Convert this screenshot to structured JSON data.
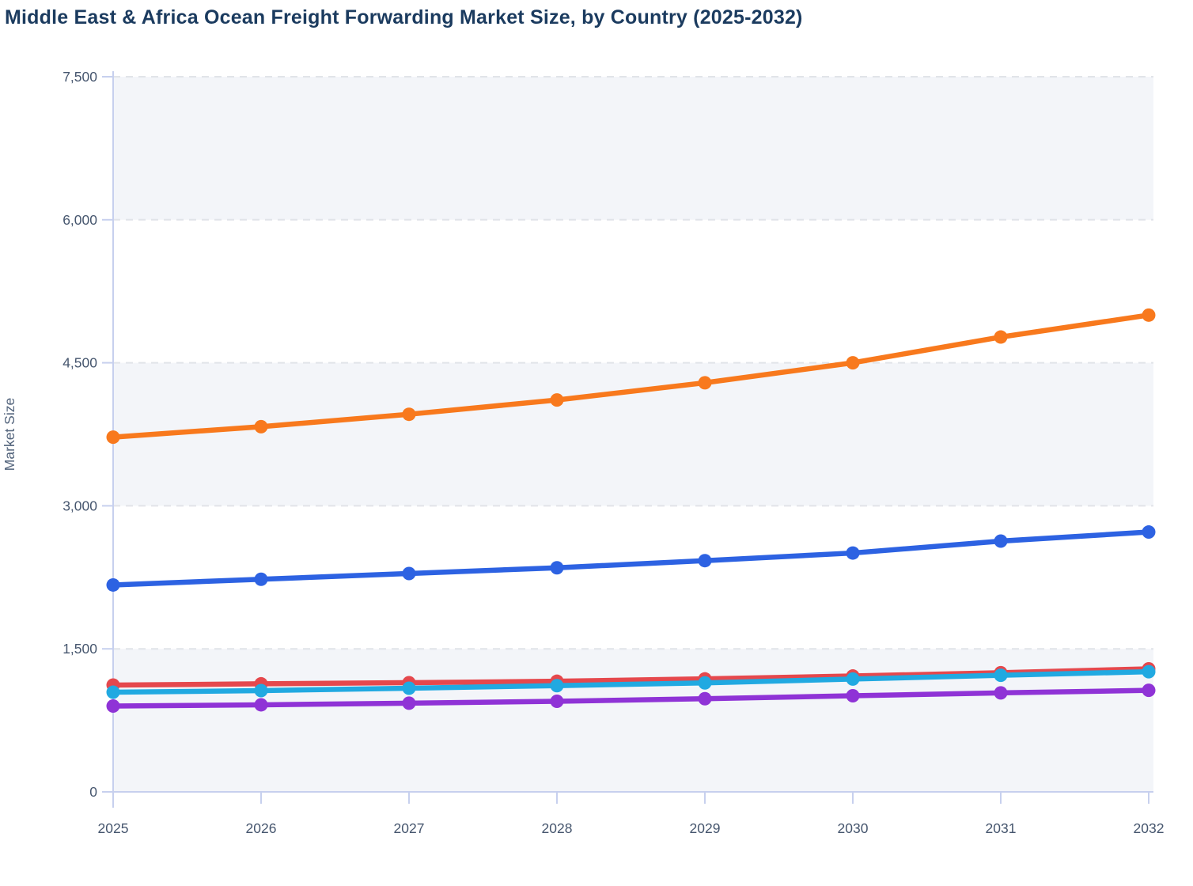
{
  "page": {
    "title": "Middle East & Africa Ocean Freight Forwarding Market Size, by Country (2025-2032)"
  },
  "chart_data": {
    "type": "line",
    "title": "Middle East & Africa Ocean Freight Forwarding Market Size, by Country (2025-2032)",
    "xlabel": "",
    "ylabel": "Market Size",
    "x": [
      2025,
      2026,
      2027,
      2028,
      2029,
      2030,
      2031,
      2032
    ],
    "xtick_labels": [
      "2025",
      "2026",
      "2027",
      "2028",
      "2029",
      "2030",
      "2031",
      "2032"
    ],
    "ylim": [
      0,
      7500
    ],
    "ytick_values": [
      0,
      1500,
      3000,
      4500,
      6000,
      7500
    ],
    "ytick_labels": [
      "0",
      "1,500",
      "3,000",
      "4,500",
      "6,000",
      "7,500"
    ],
    "grid": "horizontal dashed gridlines with alternating shaded bands",
    "legend_visible": false,
    "series": [
      {
        "id": "series-orange",
        "color": "#F8791D",
        "values": [
          3720,
          3830,
          3960,
          4110,
          4290,
          4500,
          4770,
          5000
        ]
      },
      {
        "id": "series-blue",
        "color": "#2D62E2",
        "values": [
          2170,
          2230,
          2290,
          2350,
          2425,
          2505,
          2630,
          2725
        ]
      },
      {
        "id": "series-red",
        "color": "#E5484D",
        "values": [
          1120,
          1133,
          1145,
          1160,
          1185,
          1215,
          1250,
          1290
        ]
      },
      {
        "id": "series-cyan",
        "color": "#21A9E1",
        "values": [
          1045,
          1062,
          1087,
          1114,
          1143,
          1183,
          1223,
          1260
        ]
      },
      {
        "id": "series-purple",
        "color": "#8F33D6",
        "values": [
          900,
          913,
          930,
          950,
          977,
          1008,
          1038,
          1065
        ]
      }
    ],
    "style": {
      "title_color": "#1b3b5f",
      "tick_label_color": "#46566e",
      "axis_line_color": "#c7d0ee",
      "gridline_color": "#e1e4e9",
      "band_fill_color": "#f3f5f9",
      "background_color": "#ffffff"
    }
  }
}
